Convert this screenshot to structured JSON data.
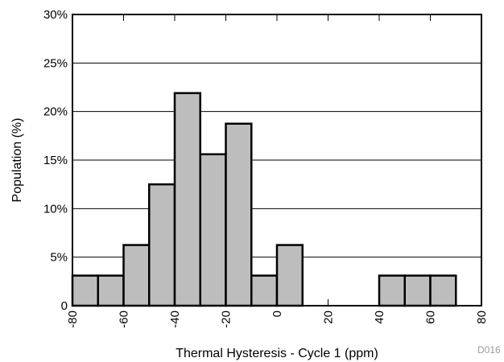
{
  "chart_data": {
    "type": "bar",
    "title": "",
    "xlabel": "Thermal Hysteresis - Cycle 1 (ppm)",
    "ylabel": "Population (%)",
    "xlim": [
      -80,
      80
    ],
    "ylim": [
      0,
      30
    ],
    "x_ticks": [
      -80,
      -60,
      -40,
      -20,
      0,
      20,
      40,
      60,
      80
    ],
    "y_ticks": [
      0,
      5,
      10,
      15,
      20,
      25,
      30
    ],
    "y_tick_labels": [
      "0",
      "5%",
      "10%",
      "15%",
      "20%",
      "25%",
      "30%"
    ],
    "bin_width": 10,
    "bins": [
      {
        "start": -80,
        "end": -70,
        "value": 3.1
      },
      {
        "start": -70,
        "end": -60,
        "value": 3.1
      },
      {
        "start": -60,
        "end": -50,
        "value": 6.25
      },
      {
        "start": -50,
        "end": -40,
        "value": 12.5
      },
      {
        "start": -40,
        "end": -30,
        "value": 21.9
      },
      {
        "start": -30,
        "end": -20,
        "value": 15.6
      },
      {
        "start": -20,
        "end": -10,
        "value": 18.75
      },
      {
        "start": -10,
        "end": 0,
        "value": 3.1
      },
      {
        "start": 0,
        "end": 10,
        "value": 6.25
      },
      {
        "start": 40,
        "end": 50,
        "value": 3.1
      },
      {
        "start": 50,
        "end": 60,
        "value": 3.1
      },
      {
        "start": 60,
        "end": 70,
        "value": 3.1
      }
    ],
    "grid": "horizontal",
    "bar_color": "#bdbdbd",
    "bar_edge_color": "#000000",
    "code": "D016"
  }
}
